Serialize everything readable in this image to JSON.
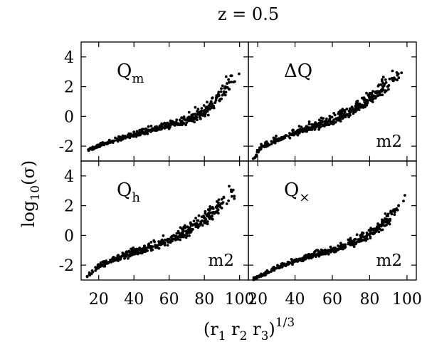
{
  "figure": {
    "title": "z = 0.5",
    "xlabel_base": "(r",
    "xlabel_parts": [
      "1",
      " r",
      "2",
      " r",
      "3",
      ")",
      "1/3"
    ],
    "ylabel_pre": "log",
    "ylabel_sub": "10",
    "ylabel_post": "(σ)"
  },
  "chart_data": [
    {
      "type": "scatter",
      "panel": "top-left",
      "label_main": "Q",
      "label_sub": "m",
      "tag": "",
      "xlim": [
        10,
        105
      ],
      "ylim": [
        -3,
        5
      ],
      "xticks": [],
      "yticks": [
        "4",
        "2",
        "0",
        "-2"
      ],
      "ytick_values": [
        4,
        2,
        0,
        -2
      ],
      "trend": [
        [
          14,
          -2.3
        ],
        [
          20,
          -2.0
        ],
        [
          30,
          -1.6
        ],
        [
          40,
          -1.25
        ],
        [
          50,
          -0.95
        ],
        [
          60,
          -0.65
        ],
        [
          70,
          -0.3
        ],
        [
          78,
          0.1
        ],
        [
          85,
          0.8
        ],
        [
          92,
          1.8
        ],
        [
          100,
          3.0
        ]
      ],
      "spread": [
        0.1,
        0.25,
        0.7
      ],
      "seed": 11
    },
    {
      "type": "scatter",
      "panel": "top-right",
      "label_main": "ΔQ",
      "label_sub": "",
      "tag": "m2",
      "xlim": [
        15,
        105
      ],
      "ylim": [
        -3,
        5
      ],
      "xticks": [],
      "yticks": [],
      "ytick_values": [
        4,
        2,
        0,
        -2
      ],
      "trend": [
        [
          17,
          -3.0
        ],
        [
          22,
          -2.1
        ],
        [
          30,
          -1.6
        ],
        [
          40,
          -1.15
        ],
        [
          50,
          -0.7
        ],
        [
          60,
          -0.3
        ],
        [
          70,
          0.3
        ],
        [
          78,
          0.9
        ],
        [
          85,
          1.6
        ],
        [
          92,
          2.3
        ],
        [
          100,
          3.0
        ]
      ],
      "spread": [
        0.15,
        0.35,
        0.55
      ],
      "seed": 23
    },
    {
      "type": "scatter",
      "panel": "bottom-left",
      "label_main": "Q",
      "label_sub": "h",
      "tag": "m2",
      "xlim": [
        10,
        105
      ],
      "ylim": [
        -3,
        5
      ],
      "xticks": [
        "20",
        "40",
        "60",
        "80",
        "100"
      ],
      "xtick_values": [
        20,
        40,
        60,
        80,
        100
      ],
      "yticks": [
        "4",
        "2",
        "0",
        "-2"
      ],
      "ytick_values": [
        4,
        2,
        0,
        -2
      ],
      "trend": [
        [
          13,
          -2.8
        ],
        [
          20,
          -2.1
        ],
        [
          30,
          -1.6
        ],
        [
          40,
          -1.2
        ],
        [
          50,
          -0.8
        ],
        [
          60,
          -0.4
        ],
        [
          70,
          0.2
        ],
        [
          78,
          0.8
        ],
        [
          85,
          1.5
        ],
        [
          92,
          2.3
        ],
        [
          100,
          3.1
        ]
      ],
      "spread": [
        0.15,
        0.35,
        0.6
      ],
      "seed": 37
    },
    {
      "type": "scatter",
      "panel": "bottom-right",
      "label_main": "Q",
      "label_sub": "×",
      "tag": "m2",
      "xlim": [
        15,
        105
      ],
      "ylim": [
        -3,
        5
      ],
      "xticks": [
        "20",
        "40",
        "60",
        "80",
        "100"
      ],
      "xtick_values": [
        20,
        40,
        60,
        80,
        100
      ],
      "yticks": [],
      "ytick_values": [
        4,
        2,
        0,
        -2
      ],
      "trend": [
        [
          17,
          -3.0
        ],
        [
          22,
          -2.7
        ],
        [
          30,
          -2.2
        ],
        [
          40,
          -1.75
        ],
        [
          50,
          -1.35
        ],
        [
          60,
          -1.0
        ],
        [
          70,
          -0.6
        ],
        [
          78,
          -0.1
        ],
        [
          85,
          0.5
        ],
        [
          92,
          1.2
        ],
        [
          100,
          2.5
        ]
      ],
      "spread": [
        0.1,
        0.25,
        0.55
      ],
      "seed": 53
    }
  ]
}
